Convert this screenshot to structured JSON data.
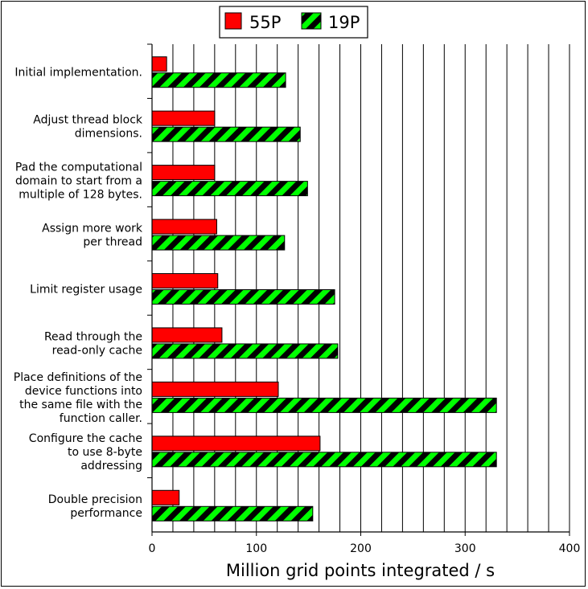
{
  "chart_data": {
    "type": "bar",
    "orientation": "horizontal",
    "title": "",
    "xlabel": "Million grid points integrated / s",
    "ylabel": "",
    "xlim": [
      0,
      400
    ],
    "xticks": [
      0,
      100,
      200,
      300,
      400
    ],
    "grid": "vertical",
    "legend_position": "top-center",
    "categories": [
      [
        "Initial implementation."
      ],
      [
        "Adjust thread block",
        "dimensions."
      ],
      [
        "Pad the computational",
        "domain to start from a",
        "multiple of 128 bytes."
      ],
      [
        "Assign more work",
        "per thread"
      ],
      [
        "Limit register usage"
      ],
      [
        "Read through the",
        "read-only cache"
      ],
      [
        "Place definitions of the",
        "device functions into",
        "the same file with the",
        "function caller."
      ],
      [
        "Configure the cache",
        "to use 8-byte",
        "addressing"
      ],
      [
        "Double precision",
        "performance"
      ]
    ],
    "series": [
      {
        "name": "55P",
        "color": "#ff0000",
        "pattern": "solid",
        "values": [
          14,
          60,
          60,
          62,
          63,
          67,
          121,
          161,
          26
        ]
      },
      {
        "name": "19P",
        "color": "#00ff00",
        "pattern": "hatch",
        "values": [
          128,
          142,
          149,
          127,
          175,
          178,
          330,
          330,
          154
        ]
      }
    ]
  }
}
